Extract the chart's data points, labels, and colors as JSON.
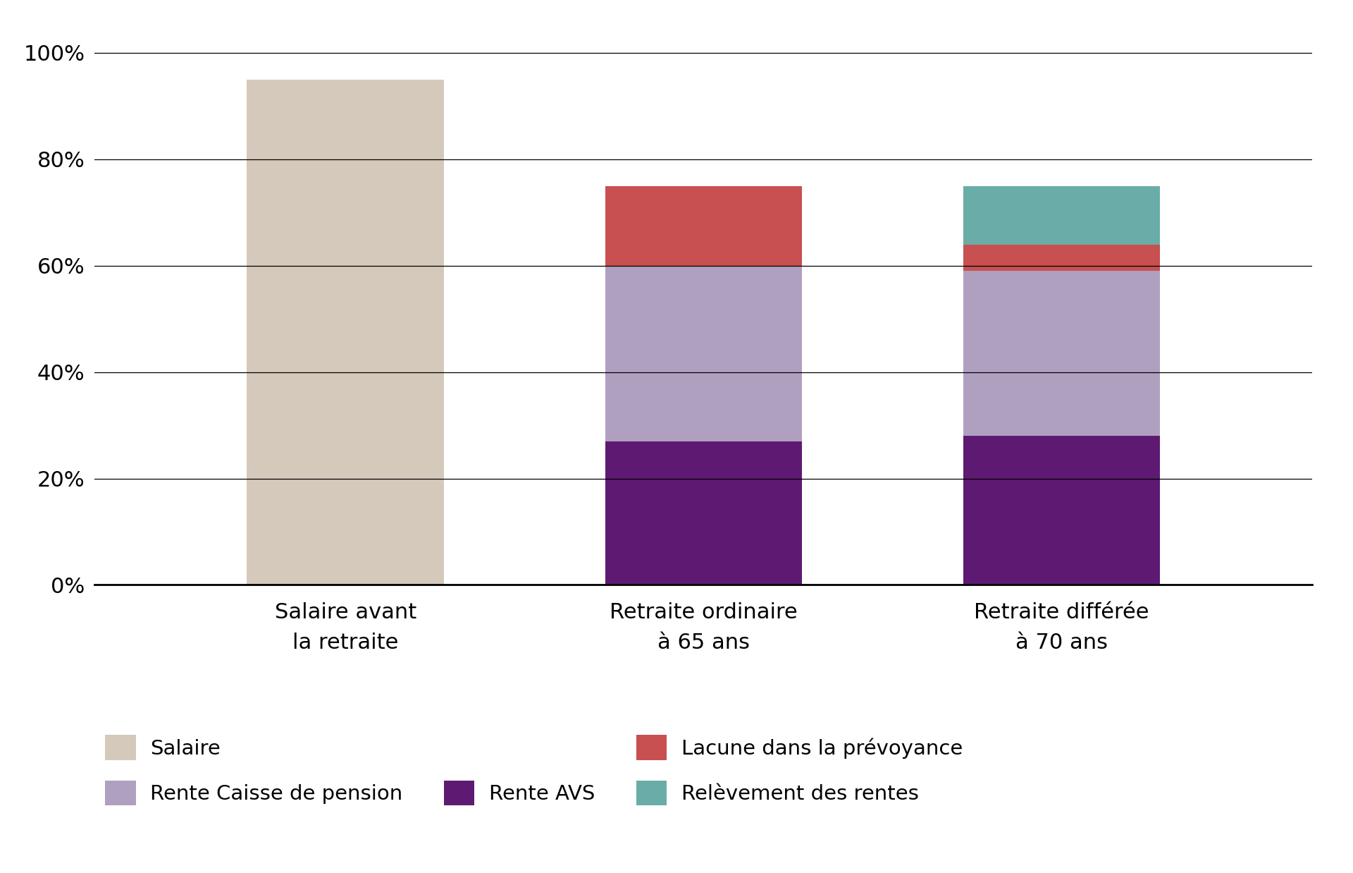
{
  "categories": [
    "Salaire avant\nla retraite",
    "Retraite ordinaire\nà 65 ans",
    "Retraite différée\nà 70 ans"
  ],
  "series": [
    {
      "label": "Salaire",
      "color": "#d4c9bb",
      "values": [
        95,
        0,
        0
      ]
    },
    {
      "label": "Rente AVS",
      "color": "#5e1a72",
      "values": [
        0,
        27,
        28
      ]
    },
    {
      "label": "Rente Caisse de pension",
      "color": "#b0a0c0",
      "values": [
        0,
        33,
        31
      ]
    },
    {
      "label": "Lacune dans la prévoyance",
      "color": "#c85050",
      "values": [
        0,
        15,
        5
      ]
    },
    {
      "label": "Relèvement des rentes",
      "color": "#6aada8",
      "values": [
        0,
        0,
        11
      ]
    }
  ],
  "yticks": [
    0,
    20,
    40,
    60,
    80,
    100
  ],
  "ytick_labels": [
    "0%",
    "20%",
    "40%",
    "60%",
    "80%",
    "100%"
  ],
  "ylim": [
    0,
    105
  ],
  "bar_width": 0.55,
  "background_color": "#ffffff",
  "tick_fontsize": 22,
  "legend_fontsize": 21
}
